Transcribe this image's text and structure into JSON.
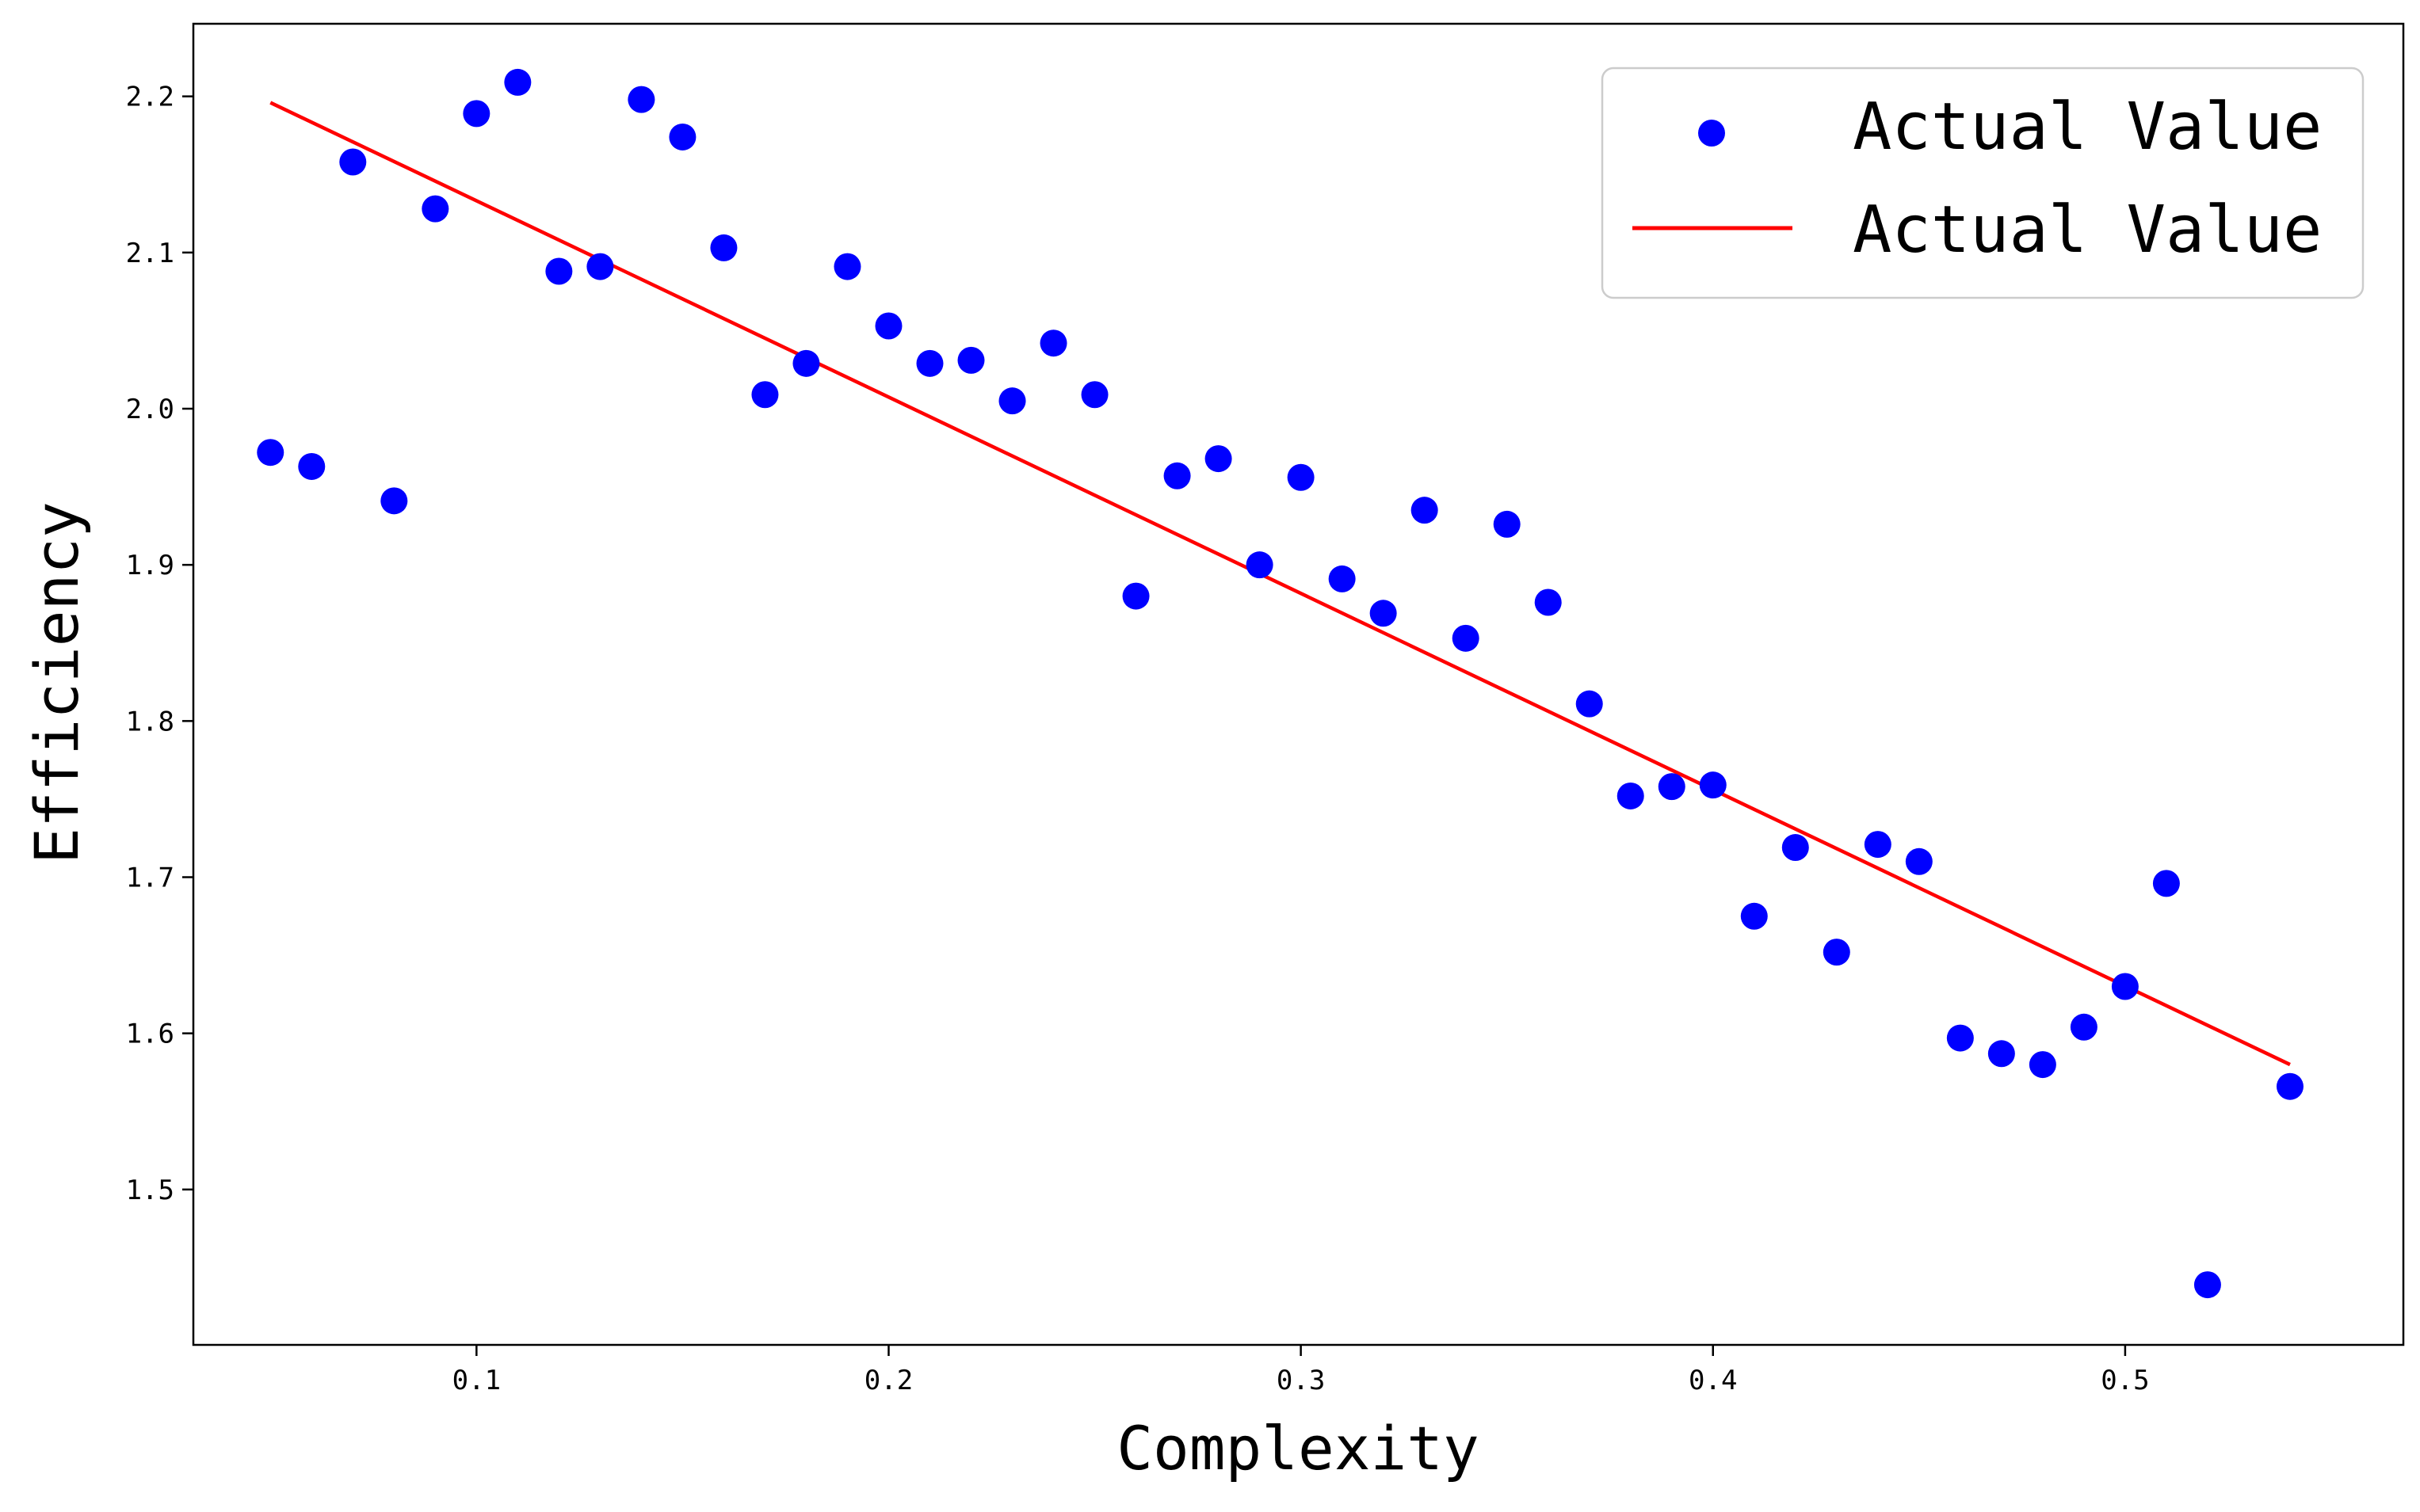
{
  "chart_data": {
    "type": "scatter",
    "title": "",
    "xlabel": "Complexity",
    "ylabel": "Efficiency",
    "xlim": [
      0.0313,
      0.5675
    ],
    "ylim": [
      1.4005,
      2.2465
    ],
    "grid": false,
    "legend_position": "top-right",
    "x_ticks": [
      0.1,
      0.2,
      0.3,
      0.4,
      0.5
    ],
    "x_tick_labels": [
      "0.1",
      "0.2",
      "0.3",
      "0.4",
      "0.5"
    ],
    "y_ticks": [
      1.5,
      1.6,
      1.7,
      1.8,
      1.9,
      2.0,
      2.1,
      2.2
    ],
    "y_tick_labels": [
      "1.5",
      "1.6",
      "1.7",
      "1.8",
      "1.9",
      "2.0",
      "2.1",
      "2.2"
    ],
    "series": [
      {
        "name": "Actual Value",
        "kind": "scatter",
        "color": "#0000ff",
        "x": [
          0.05,
          0.06,
          0.07,
          0.08,
          0.09,
          0.1,
          0.11,
          0.12,
          0.13,
          0.14,
          0.15,
          0.16,
          0.17,
          0.18,
          0.19,
          0.2,
          0.21,
          0.22,
          0.23,
          0.24,
          0.25,
          0.26,
          0.27,
          0.28,
          0.29,
          0.3,
          0.31,
          0.32,
          0.33,
          0.34,
          0.35,
          0.36,
          0.37,
          0.38,
          0.39,
          0.4,
          0.41,
          0.42,
          0.43,
          0.44,
          0.45,
          0.46,
          0.47,
          0.48,
          0.49,
          0.5,
          0.51,
          0.52,
          0.54
        ],
        "y": [
          1.972,
          1.963,
          2.158,
          1.941,
          2.128,
          2.189,
          2.209,
          2.088,
          2.091,
          2.198,
          2.174,
          2.103,
          2.009,
          2.029,
          2.091,
          2.053,
          2.029,
          2.031,
          2.005,
          2.042,
          2.009,
          1.88,
          1.957,
          1.968,
          1.9,
          1.956,
          1.891,
          1.869,
          1.935,
          1.853,
          1.926,
          1.876,
          1.811,
          1.752,
          1.758,
          1.759,
          1.675,
          1.719,
          1.652,
          1.721,
          1.71,
          1.597,
          1.587,
          1.58,
          1.604,
          1.63,
          1.696,
          1.439,
          1.566
        ]
      },
      {
        "name": "Actual Value",
        "kind": "line",
        "color": "#ff0000",
        "x": [
          0.05,
          0.54
        ],
        "y": [
          2.196,
          1.58
        ]
      }
    ]
  }
}
